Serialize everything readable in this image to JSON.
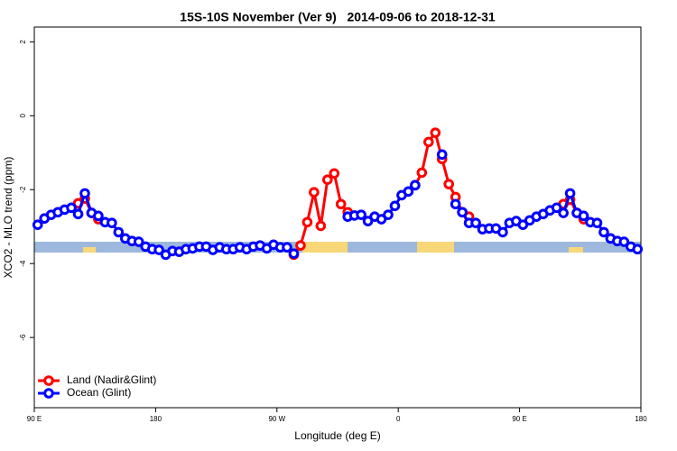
{
  "chart_data": {
    "type": "line",
    "title": "15S-10S November (Ver 9)   2014-09-06 to 2018-12-31",
    "x_label": "Longitude (deg E)",
    "y_label": "XCO2 - MLO trend (ppm)",
    "x": [
      92.5,
      97.5,
      102.5,
      107.5,
      112.5,
      117.5,
      122.5,
      127.5,
      132.5,
      137.5,
      142.5,
      147.5,
      152.5,
      157.5,
      162.5,
      167.5,
      172.5,
      177.5,
      182.5,
      187.5,
      192.5,
      197.5,
      202.5,
      207.5,
      212.5,
      217.5,
      222.5,
      227.5,
      232.5,
      237.5,
      242.5,
      247.5,
      252.5,
      257.5,
      262.5,
      267.5,
      272.5,
      277.5,
      282.5,
      287.5,
      292.5,
      297.5,
      302.5,
      307.5,
      312.5,
      317.5,
      322.5,
      327.5,
      332.5,
      337.5,
      342.5,
      347.5,
      352.5,
      357.5,
      362.5,
      367.5,
      372.5,
      377.5,
      382.5,
      387.5,
      392.5,
      397.5,
      402.5,
      407.5,
      412.5,
      417.5,
      422.5,
      427.5,
      432.5,
      437.5,
      442.5,
      447.5,
      452.5,
      457.5,
      462.5,
      467.5,
      472.5,
      477.5,
      482.5,
      487.5,
      492.5,
      497.5,
      502.5,
      507.5,
      512.5,
      517.5,
      522.5,
      527.5,
      532.5,
      537.5
    ],
    "series": [
      {
        "name": "Land (Nadir&Glint)",
        "color": "#ff0000",
        "values": [
          null,
          null,
          null,
          null,
          null,
          null,
          -2.37,
          -2.24,
          -2.63,
          -2.8,
          null,
          null,
          null,
          null,
          null,
          null,
          null,
          null,
          null,
          null,
          null,
          null,
          null,
          null,
          null,
          null,
          null,
          null,
          null,
          null,
          null,
          null,
          null,
          null,
          null,
          null,
          null,
          null,
          -3.76,
          -3.51,
          -2.88,
          -2.07,
          -2.98,
          -1.73,
          -1.56,
          -2.39,
          -2.61,
          null,
          null,
          null,
          null,
          null,
          null,
          null,
          null,
          null,
          -1.88,
          -1.54,
          -0.71,
          -0.46,
          -1.17,
          -1.85,
          -2.2,
          -2.61,
          -2.73,
          null,
          null,
          null,
          null,
          null,
          null,
          null,
          null,
          null,
          null,
          null,
          null,
          null,
          -2.39,
          -2.27,
          -2.63,
          -2.8,
          null,
          null,
          null,
          null,
          null,
          null,
          null,
          null
        ]
      },
      {
        "name": "Ocean (Glint)",
        "color": "#0000ff",
        "values": [
          -2.95,
          -2.78,
          -2.68,
          -2.61,
          -2.54,
          -2.49,
          -2.66,
          -2.1,
          -2.63,
          -2.71,
          -2.88,
          -2.9,
          -3.15,
          -3.32,
          -3.39,
          -3.41,
          -3.54,
          -3.61,
          -3.63,
          -3.76,
          -3.66,
          -3.68,
          -3.61,
          -3.59,
          -3.54,
          -3.54,
          -3.63,
          -3.56,
          -3.61,
          -3.61,
          -3.56,
          -3.61,
          -3.54,
          -3.51,
          -3.59,
          -3.49,
          -3.56,
          -3.56,
          -3.73,
          null,
          null,
          null,
          null,
          null,
          null,
          null,
          -2.73,
          -2.7,
          -2.68,
          -2.85,
          -2.73,
          -2.8,
          -2.68,
          -2.44,
          -2.15,
          -2.05,
          -1.88,
          null,
          null,
          null,
          -1.05,
          null,
          -2.39,
          -2.61,
          -2.9,
          -2.9,
          -3.07,
          -3.05,
          -3.05,
          -3.15,
          -2.9,
          -2.85,
          -2.95,
          -2.83,
          -2.73,
          -2.66,
          -2.56,
          -2.49,
          -2.63,
          -2.1,
          -2.63,
          -2.71,
          -2.88,
          -2.9,
          -3.15,
          -3.32,
          -3.39,
          -3.41,
          -3.54,
          -3.61
        ]
      }
    ],
    "xlim": [
      90,
      540
    ],
    "xticks": [
      {
        "value": 90,
        "label": "90 E"
      },
      180,
      {
        "value": 270,
        "label": "90 W"
      },
      {
        "value": 360,
        "label": "0"
      },
      {
        "value": 450,
        "label": "90 E"
      },
      {
        "value": 540,
        "label": "180"
      }
    ],
    "ylim": [
      -7.9,
      2.4
    ],
    "yticks": [
      -6,
      -4,
      -2,
      0,
      2
    ],
    "legend": "bottom-left"
  }
}
